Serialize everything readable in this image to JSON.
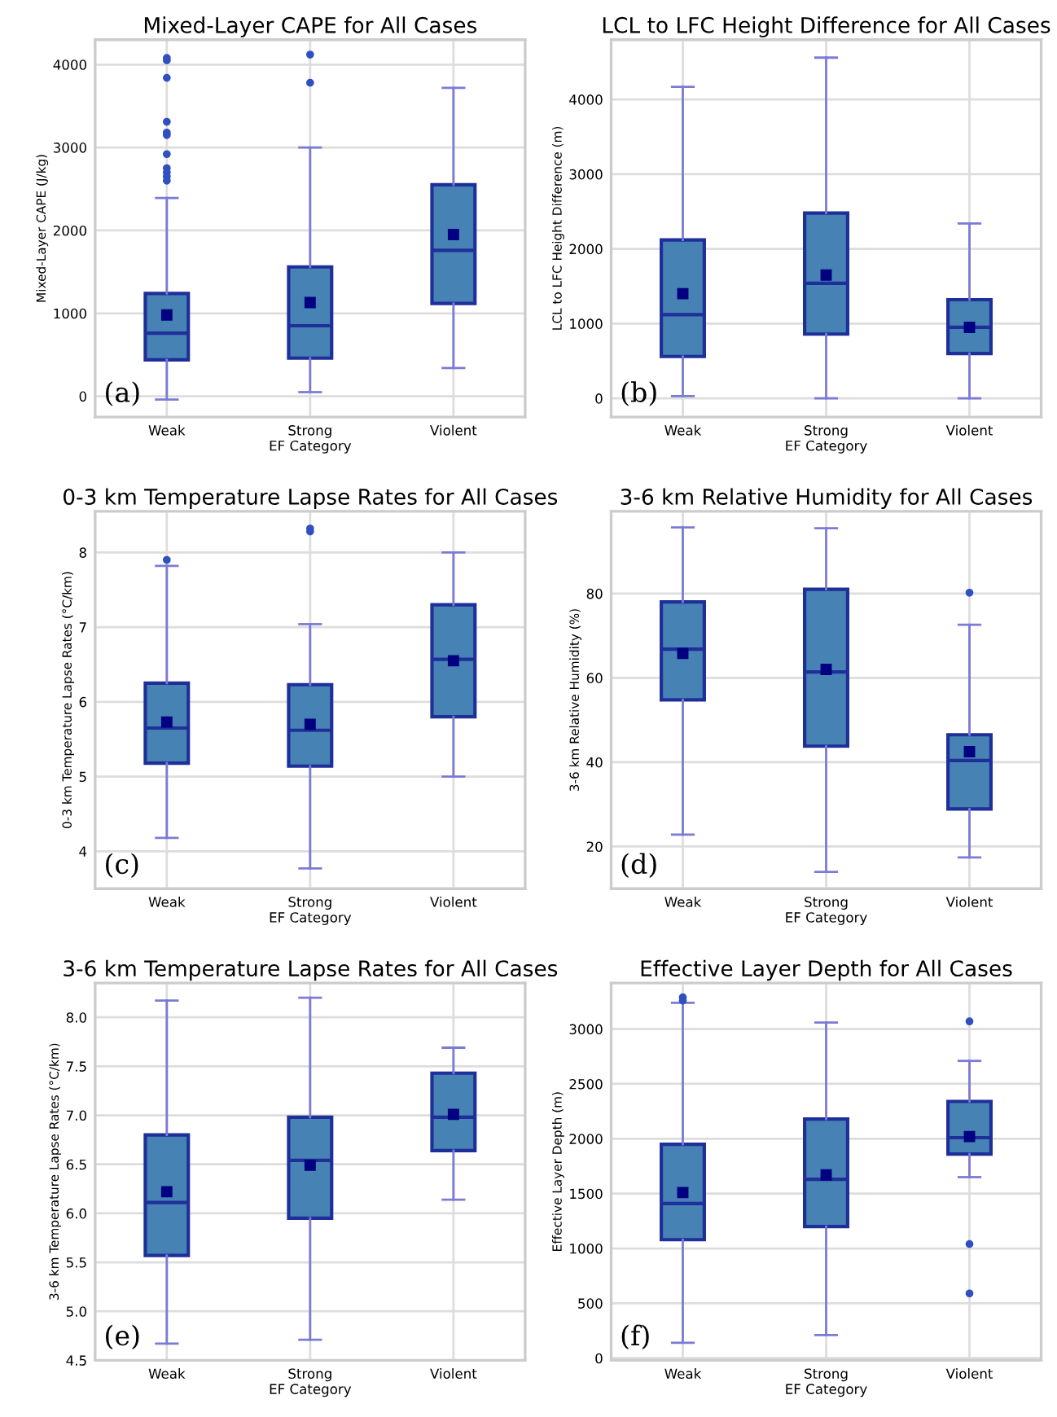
{
  "chart_data": [
    {
      "type": "box",
      "title": "Mixed-Layer CAPE for All Cases",
      "xlabel": "EF Category",
      "ylabel": "Mixed-Layer CAPE (J/kg)",
      "categories": [
        "Weak",
        "Strong",
        "Violent"
      ],
      "ylim": [
        -250,
        4300
      ],
      "yticks": [
        0,
        1000,
        2000,
        3000,
        4000
      ],
      "grid": true,
      "annotations": [
        "(a)"
      ],
      "series": [
        {
          "color": "#4682b4",
          "boxes": [
            {
              "low": -40,
              "q1": 440,
              "median": 760,
              "q3": 1240,
              "high": 2390,
              "mean": 980,
              "outliers": [
                2600,
                2650,
                2700,
                2750,
                2920,
                3150,
                3180,
                3310,
                3840,
                4050,
                4080
              ]
            },
            {
              "low": 50,
              "q1": 460,
              "median": 850,
              "q3": 1560,
              "high": 3000,
              "mean": 1130,
              "outliers": [
                3780,
                4120
              ]
            },
            {
              "low": 340,
              "q1": 1120,
              "median": 1760,
              "q3": 2550,
              "high": 3720,
              "mean": 1950
            }
          ]
        }
      ]
    },
    {
      "type": "box",
      "title": "LCL to LFC Height Difference for All Cases",
      "xlabel": "EF Category",
      "ylabel": "LCL to LFC Height Difference (m)",
      "categories": [
        "Weak",
        "Strong",
        "Violent"
      ],
      "ylim": [
        -250,
        4800
      ],
      "yticks": [
        0,
        1000,
        2000,
        3000,
        4000
      ],
      "grid": true,
      "annotations": [
        "(b)"
      ],
      "series": [
        {
          "color": "#4682b4",
          "boxes": [
            {
              "low": 30,
              "q1": 560,
              "median": 1120,
              "q3": 2120,
              "high": 4170,
              "mean": 1400
            },
            {
              "low": 0,
              "q1": 860,
              "median": 1540,
              "q3": 2480,
              "high": 4560,
              "mean": 1650
            },
            {
              "low": 0,
              "q1": 600,
              "median": 950,
              "q3": 1320,
              "high": 2340,
              "mean": 950
            }
          ]
        }
      ]
    },
    {
      "type": "box",
      "title": "0-3 km Temperature Lapse Rates for All Cases",
      "xlabel": "EF Category",
      "ylabel": "0-3 km Temperature Lapse Rates (°C/km)",
      "categories": [
        "Weak",
        "Strong",
        "Violent"
      ],
      "ylim": [
        3.5,
        8.55
      ],
      "yticks": [
        4,
        5,
        6,
        7,
        8
      ],
      "grid": true,
      "annotations": [
        "(c)"
      ],
      "series": [
        {
          "color": "#4682b4",
          "boxes": [
            {
              "low": 4.18,
              "q1": 5.18,
              "median": 5.65,
              "q3": 6.25,
              "high": 7.82,
              "mean": 5.73,
              "outliers": [
                7.9
              ]
            },
            {
              "low": 3.77,
              "q1": 5.14,
              "median": 5.62,
              "q3": 6.23,
              "high": 7.04,
              "mean": 5.7,
              "outliers": [
                8.28,
                8.32
              ]
            },
            {
              "low": 5.0,
              "q1": 5.8,
              "median": 6.57,
              "q3": 7.3,
              "high": 8.0,
              "mean": 6.55
            }
          ]
        }
      ]
    },
    {
      "type": "box",
      "title": "3-6 km Relative Humidity for All Cases",
      "xlabel": "EF Category",
      "ylabel": "3-6 km Relative Humidity (%)",
      "categories": [
        "Weak",
        "Strong",
        "Violent"
      ],
      "ylim": [
        10,
        99.5
      ],
      "yticks": [
        20,
        40,
        60,
        80
      ],
      "grid": true,
      "annotations": [
        "(d)"
      ],
      "series": [
        {
          "color": "#4682b4",
          "boxes": [
            {
              "low": 22.8,
              "q1": 54.8,
              "median": 66.8,
              "q3": 78,
              "high": 95.7,
              "mean": 65.8
            },
            {
              "low": 14,
              "q1": 43.8,
              "median": 61.4,
              "q3": 81,
              "high": 95.5,
              "mean": 62
            },
            {
              "low": 17.4,
              "q1": 28.9,
              "median": 40.4,
              "q3": 46.5,
              "high": 72.6,
              "mean": 42.5,
              "outliers": [
                80.2
              ]
            }
          ]
        }
      ]
    },
    {
      "type": "box",
      "title": "3-6 km Temperature Lapse Rates for All Cases",
      "xlabel": "EF Category",
      "ylabel": "3-6 km Temperature Lapse Rates (°C/km)",
      "categories": [
        "Weak",
        "Strong",
        "Violent"
      ],
      "ylim": [
        4.5,
        8.35
      ],
      "yticks": [
        4.5,
        {
          "value": 5,
          "label": "5.0"
        },
        5.5,
        {
          "value": 6,
          "label": "6.0"
        },
        6.5,
        {
          "value": 7,
          "label": "7.0"
        },
        7.5,
        {
          "value": 8,
          "label": "8.0"
        }
      ],
      "grid": true,
      "annotations": [
        "(e)"
      ],
      "series": [
        {
          "color": "#4682b4",
          "boxes": [
            {
              "low": 4.67,
              "q1": 5.57,
              "median": 6.11,
              "q3": 6.8,
              "high": 8.17,
              "mean": 6.22
            },
            {
              "low": 4.71,
              "q1": 5.95,
              "median": 6.54,
              "q3": 6.98,
              "high": 8.2,
              "mean": 6.49
            },
            {
              "low": 6.14,
              "q1": 6.64,
              "median": 6.98,
              "q3": 7.43,
              "high": 7.69,
              "mean": 7.01
            }
          ]
        }
      ]
    },
    {
      "type": "box",
      "title": "Effective Layer Depth for All Cases",
      "xlabel": "EF Category",
      "ylabel": "Effective Layer Depth (m)",
      "categories": [
        "Weak",
        "Strong",
        "Violent"
      ],
      "ylim": [
        -20,
        3420
      ],
      "yticks": [
        0,
        500,
        1000,
        1500,
        2000,
        2500,
        3000
      ],
      "grid": true,
      "annotations": [
        "(f)"
      ],
      "series": [
        {
          "color": "#4682b4",
          "boxes": [
            {
              "low": 140,
              "q1": 1080,
              "median": 1410,
              "q3": 1950,
              "high": 3240,
              "mean": 1510,
              "outliers": [
                3260,
                3290
              ]
            },
            {
              "low": 210,
              "q1": 1200,
              "median": 1630,
              "q3": 2180,
              "high": 3060,
              "mean": 1670
            },
            {
              "low": 1650,
              "q1": 1860,
              "median": 2010,
              "q3": 2340,
              "high": 2710,
              "mean": 2020,
              "outliers": [
                590,
                1040,
                3070
              ]
            }
          ]
        }
      ]
    }
  ]
}
